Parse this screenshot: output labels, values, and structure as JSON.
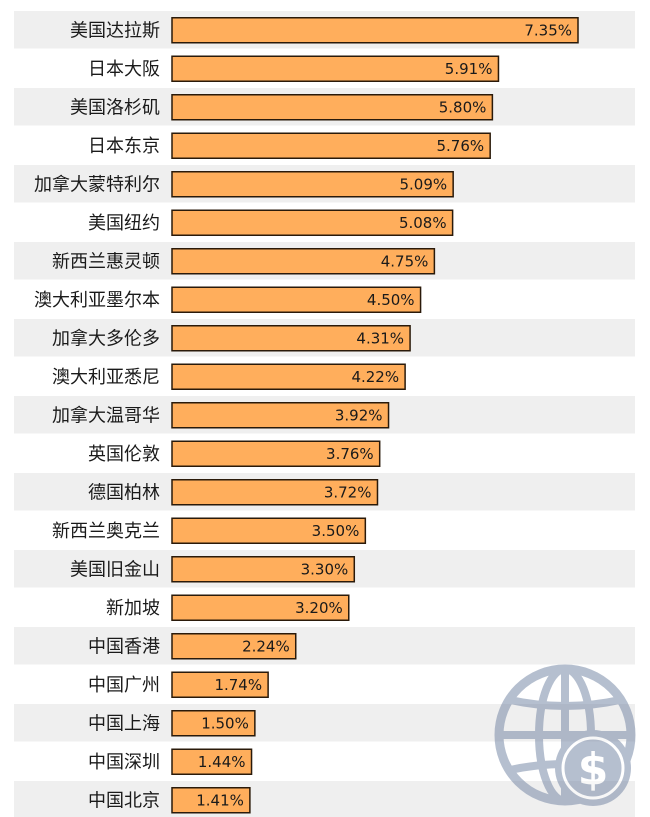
{
  "chart_data": {
    "type": "bar",
    "orientation": "horizontal",
    "categories": [
      "美国达拉斯",
      "日本大阪",
      "美国洛杉矶",
      "日本东京",
      "加拿大蒙特利尔",
      "美国纽约",
      "新西兰惠灵顿",
      "澳大利亚墨尔本",
      "加拿大多伦多",
      "澳大利亚悉尼",
      "加拿大温哥华",
      "英国伦敦",
      "德国柏林",
      "新西兰奥克兰",
      "美国旧金山",
      "新加坡",
      "中国香港",
      "中国广州",
      "中国上海",
      "中国深圳",
      "中国北京"
    ],
    "values": [
      7.35,
      5.91,
      5.8,
      5.76,
      5.09,
      5.08,
      4.75,
      4.5,
      4.31,
      4.22,
      3.92,
      3.76,
      3.72,
      3.5,
      3.3,
      3.2,
      2.24,
      1.74,
      1.5,
      1.44,
      1.41
    ],
    "value_labels": [
      "7.35%",
      "5.91%",
      "5.80%",
      "5.76%",
      "5.09%",
      "5.08%",
      "4.75%",
      "4.50%",
      "4.31%",
      "4.22%",
      "3.92%",
      "3.76%",
      "3.72%",
      "3.50%",
      "3.30%",
      "3.20%",
      "2.24%",
      "1.74%",
      "1.50%",
      "1.44%",
      "1.41%"
    ],
    "xlim": [
      0,
      7.35
    ],
    "bar_color": "#FFAE5C",
    "bar_border_color": "#2a1a0a",
    "stripe_color": "#EFEFEF",
    "grid": false,
    "legend": "none"
  },
  "watermark": {
    "icon": "globe-dollar-icon",
    "color": "#7A8BA8"
  }
}
